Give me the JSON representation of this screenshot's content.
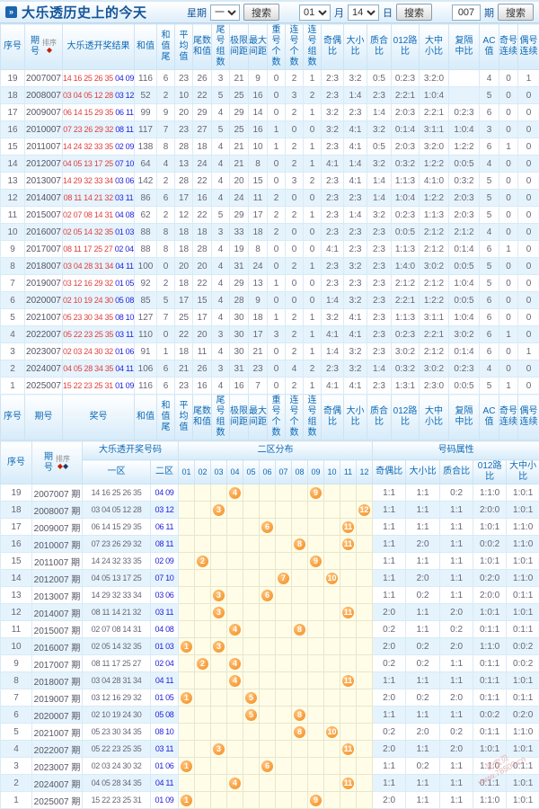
{
  "title": "大乐透历史上的今天",
  "title_icon": "»",
  "controls": {
    "week_label": "星期",
    "week_value": "一",
    "search_button": "搜索",
    "month_value": "01",
    "month_suffix": "月",
    "day_value": "14",
    "day_suffix": "日",
    "issue_value": "007",
    "issue_suffix": "期"
  },
  "table1": {
    "sort_label": "排序",
    "sort_icon": "◆",
    "headers": [
      "序号",
      "期|号",
      "大乐透开奖结果",
      "和值",
      "和值|尾",
      "平均|值",
      "尾数|和值",
      "尾号|组数",
      "极限|间距",
      "最大|间距",
      "重号|个数",
      "连号|个数",
      "连号|组数",
      "奇偶|比",
      "大小|比",
      "质合|比",
      "012路|比",
      "大中|小比",
      "复隔|中比",
      "AC值",
      "奇号|连续",
      "偶号|连续"
    ],
    "footer_headers": [
      "序号",
      "期号",
      "奖号",
      "和值",
      "和值|尾",
      "平均|值",
      "尾数|和值",
      "尾号|组数",
      "极限|间距",
      "最大|间距",
      "重号|个数",
      "连号|个数",
      "连号|组数",
      "奇偶|比",
      "大小|比",
      "质合|比",
      "012路|比",
      "大中|小比",
      "复隔|中比",
      "AC值",
      "奇号|连续",
      "偶号|连续"
    ],
    "rows": [
      {
        "seq": "19",
        "issue": "2007007",
        "front": "14 16 25 26 35",
        "back": "04 09",
        "stats": [
          "116",
          "6",
          "23",
          "26",
          "3",
          "21",
          "9",
          "0",
          "2",
          "1",
          "2:3",
          "3:2",
          "0:5",
          "0:2:3",
          "3:2:0",
          "",
          "4",
          "0",
          "1"
        ]
      },
      {
        "seq": "18",
        "issue": "2008007",
        "front": "03 04 05 12 28",
        "back": "03 12",
        "stats": [
          "52",
          "2",
          "10",
          "22",
          "5",
          "25",
          "16",
          "0",
          "3",
          "2",
          "2:3",
          "1:4",
          "2:3",
          "2:2:1",
          "1:0:4",
          "",
          "5",
          "0",
          "0"
        ]
      },
      {
        "seq": "17",
        "issue": "2009007",
        "front": "06 14 15 29 35",
        "back": "06 11",
        "stats": [
          "99",
          "9",
          "20",
          "29",
          "4",
          "29",
          "14",
          "0",
          "2",
          "1",
          "3:2",
          "2:3",
          "1:4",
          "2:0:3",
          "2:2:1",
          "0:2:3",
          "6",
          "0",
          "0"
        ]
      },
      {
        "seq": "16",
        "issue": "2010007",
        "front": "07 23 26 29 32",
        "back": "08 11",
        "stats": [
          "117",
          "7",
          "23",
          "27",
          "5",
          "25",
          "16",
          "1",
          "0",
          "0",
          "3:2",
          "4:1",
          "3:2",
          "0:1:4",
          "3:1:1",
          "1:0:4",
          "3",
          "0",
          "0"
        ]
      },
      {
        "seq": "15",
        "issue": "2011007",
        "front": "14 24 32 33 35",
        "back": "02 09",
        "stats": [
          "138",
          "8",
          "28",
          "18",
          "4",
          "21",
          "10",
          "1",
          "2",
          "1",
          "2:3",
          "4:1",
          "0:5",
          "2:0:3",
          "3:2:0",
          "1:2:2",
          "6",
          "1",
          "0"
        ]
      },
      {
        "seq": "14",
        "issue": "2012007",
        "front": "04 05 13 17 25",
        "back": "07 10",
        "stats": [
          "64",
          "4",
          "13",
          "24",
          "4",
          "21",
          "8",
          "0",
          "2",
          "1",
          "4:1",
          "1:4",
          "3:2",
          "0:3:2",
          "1:2:2",
          "0:0:5",
          "4",
          "0",
          "0"
        ]
      },
      {
        "seq": "13",
        "issue": "2013007",
        "front": "14 29 32 33 34",
        "back": "03 06",
        "stats": [
          "142",
          "2",
          "28",
          "22",
          "4",
          "20",
          "15",
          "0",
          "3",
          "2",
          "2:3",
          "4:1",
          "1:4",
          "1:1:3",
          "4:1:0",
          "0:3:2",
          "5",
          "0",
          "0"
        ]
      },
      {
        "seq": "12",
        "issue": "2014007",
        "front": "08 11 14 21 32",
        "back": "03 11",
        "stats": [
          "86",
          "6",
          "17",
          "16",
          "4",
          "24",
          "11",
          "2",
          "0",
          "0",
          "2:3",
          "2:3",
          "1:4",
          "1:0:4",
          "1:2:2",
          "2:0:3",
          "5",
          "0",
          "0"
        ]
      },
      {
        "seq": "11",
        "issue": "2015007",
        "front": "02 07 08 14 31",
        "back": "04 08",
        "stats": [
          "62",
          "2",
          "12",
          "22",
          "5",
          "29",
          "17",
          "2",
          "2",
          "1",
          "2:3",
          "1:4",
          "3:2",
          "0:2:3",
          "1:1:3",
          "2:0:3",
          "5",
          "0",
          "0"
        ]
      },
      {
        "seq": "10",
        "issue": "2016007",
        "front": "02 05 14 32 35",
        "back": "01 03",
        "stats": [
          "88",
          "8",
          "18",
          "18",
          "3",
          "33",
          "18",
          "2",
          "0",
          "0",
          "2:3",
          "2:3",
          "2:3",
          "0:0:5",
          "2:1:2",
          "2:1:2",
          "4",
          "0",
          "0"
        ]
      },
      {
        "seq": "9",
        "issue": "2017007",
        "front": "08 11 17 25 27",
        "back": "02 04",
        "stats": [
          "88",
          "8",
          "18",
          "28",
          "4",
          "19",
          "8",
          "0",
          "0",
          "0",
          "4:1",
          "2:3",
          "2:3",
          "1:1:3",
          "2:1:2",
          "0:1:4",
          "6",
          "1",
          "0"
        ]
      },
      {
        "seq": "8",
        "issue": "2018007",
        "front": "03 04 28 31 34",
        "back": "04 11",
        "stats": [
          "100",
          "0",
          "20",
          "20",
          "4",
          "31",
          "24",
          "0",
          "2",
          "1",
          "2:3",
          "3:2",
          "2:3",
          "1:4:0",
          "3:0:2",
          "0:0:5",
          "5",
          "0",
          "0"
        ]
      },
      {
        "seq": "7",
        "issue": "2019007",
        "front": "03 12 16 29 32",
        "back": "01 05",
        "stats": [
          "92",
          "2",
          "18",
          "22",
          "4",
          "29",
          "13",
          "1",
          "0",
          "0",
          "2:3",
          "2:3",
          "2:3",
          "2:1:2",
          "2:1:2",
          "1:0:4",
          "5",
          "0",
          "0"
        ]
      },
      {
        "seq": "6",
        "issue": "2020007",
        "front": "02 10 19 24 30",
        "back": "05 08",
        "stats": [
          "85",
          "5",
          "17",
          "15",
          "4",
          "28",
          "9",
          "0",
          "0",
          "0",
          "1:4",
          "3:2",
          "2:3",
          "2:2:1",
          "1:2:2",
          "0:0:5",
          "6",
          "0",
          "0"
        ]
      },
      {
        "seq": "5",
        "issue": "2021007",
        "front": "05 23 30 34 35",
        "back": "08 10",
        "stats": [
          "127",
          "7",
          "25",
          "17",
          "4",
          "30",
          "18",
          "1",
          "2",
          "1",
          "3:2",
          "4:1",
          "2:3",
          "1:1:3",
          "3:1:1",
          "1:0:4",
          "6",
          "0",
          "0"
        ]
      },
      {
        "seq": "4",
        "issue": "2022007",
        "front": "05 22 23 25 35",
        "back": "03 11",
        "stats": [
          "110",
          "0",
          "22",
          "20",
          "3",
          "30",
          "17",
          "3",
          "2",
          "1",
          "4:1",
          "4:1",
          "2:3",
          "0:2:3",
          "2:2:1",
          "3:0:2",
          "6",
          "1",
          "0"
        ]
      },
      {
        "seq": "3",
        "issue": "2023007",
        "front": "02 03 24 30 32",
        "back": "01 06",
        "stats": [
          "91",
          "1",
          "18",
          "11",
          "4",
          "30",
          "21",
          "0",
          "2",
          "1",
          "1:4",
          "3:2",
          "2:3",
          "3:0:2",
          "2:1:2",
          "0:1:4",
          "6",
          "0",
          "1"
        ]
      },
      {
        "seq": "2",
        "issue": "2024007",
        "front": "04 05 28 34 35",
        "back": "04 11",
        "stats": [
          "106",
          "6",
          "21",
          "26",
          "3",
          "31",
          "23",
          "0",
          "4",
          "2",
          "2:3",
          "3:2",
          "1:4",
          "0:3:2",
          "3:0:2",
          "0:2:3",
          "4",
          "0",
          "0"
        ]
      },
      {
        "seq": "1",
        "issue": "2025007",
        "front": "15 22 23 25 31",
        "back": "01 09",
        "stats": [
          "116",
          "6",
          "23",
          "16",
          "4",
          "16",
          "7",
          "0",
          "2",
          "1",
          "4:1",
          "4:1",
          "2:3",
          "1:3:1",
          "2:3:0",
          "0:0:5",
          "5",
          "1",
          "0"
        ]
      }
    ]
  },
  "table2": {
    "labels": {
      "seq": "序号",
      "issue_l1": "期",
      "issue_l2": "号",
      "sort": "排序",
      "sort_icon1": "◆",
      "sort_icon2": "◆",
      "numbers": "大乐透开奖号码",
      "zone1": "一区",
      "zone2": "二区",
      "dist": "二区分布",
      "attrs": "号码属性"
    },
    "dist_cols": [
      "01",
      "02",
      "03",
      "04",
      "05",
      "06",
      "07",
      "08",
      "09",
      "10",
      "11",
      "12"
    ],
    "attr_cols": [
      "奇偶比",
      "大小比",
      "质合比",
      "012路比",
      "大中小比"
    ],
    "rows": [
      {
        "seq": "19",
        "issue": "2007007 期",
        "zone1": "14 16 25 26 35",
        "zone2": "04 09",
        "balls": [
          4,
          9
        ],
        "attrs": [
          "1:1",
          "1:1",
          "0:2",
          "1:1:0",
          "1:0:1"
        ]
      },
      {
        "seq": "18",
        "issue": "2008007 期",
        "zone1": "03 04 05 12 28",
        "zone2": "03 12",
        "balls": [
          3,
          12
        ],
        "attrs": [
          "1:1",
          "1:1",
          "1:1",
          "2:0:0",
          "1:0:1"
        ]
      },
      {
        "seq": "17",
        "issue": "2009007 期",
        "zone1": "06 14 15 29 35",
        "zone2": "06 11",
        "balls": [
          6,
          11
        ],
        "attrs": [
          "1:1",
          "1:1",
          "1:1",
          "1:0:1",
          "1:1:0"
        ]
      },
      {
        "seq": "16",
        "issue": "2010007 期",
        "zone1": "07 23 26 29 32",
        "zone2": "08 11",
        "balls": [
          8,
          11
        ],
        "attrs": [
          "1:1",
          "2:0",
          "1:1",
          "0:0:2",
          "1:1:0"
        ]
      },
      {
        "seq": "15",
        "issue": "2011007 期",
        "zone1": "14 24 32 33 35",
        "zone2": "02 09",
        "balls": [
          2,
          9
        ],
        "attrs": [
          "1:1",
          "1:1",
          "1:1",
          "1:0:1",
          "1:0:1"
        ]
      },
      {
        "seq": "14",
        "issue": "2012007 期",
        "zone1": "04 05 13 17 25",
        "zone2": "07 10",
        "balls": [
          7,
          10
        ],
        "attrs": [
          "1:1",
          "2:0",
          "1:1",
          "0:2:0",
          "1:1:0"
        ]
      },
      {
        "seq": "13",
        "issue": "2013007 期",
        "zone1": "14 29 32 33 34",
        "zone2": "03 06",
        "balls": [
          3,
          6
        ],
        "attrs": [
          "1:1",
          "0:2",
          "1:1",
          "2:0:0",
          "0:1:1"
        ]
      },
      {
        "seq": "12",
        "issue": "2014007 期",
        "zone1": "08 11 14 21 32",
        "zone2": "03 11",
        "balls": [
          3,
          11
        ],
        "attrs": [
          "2:0",
          "1:1",
          "2:0",
          "1:0:1",
          "1:0:1"
        ]
      },
      {
        "seq": "11",
        "issue": "2015007 期",
        "zone1": "02 07 08 14 31",
        "zone2": "04 08",
        "balls": [
          4,
          8
        ],
        "attrs": [
          "0:2",
          "1:1",
          "0:2",
          "0:1:1",
          "0:1:1"
        ]
      },
      {
        "seq": "10",
        "issue": "2016007 期",
        "zone1": "02 05 14 32 35",
        "zone2": "01 03",
        "balls": [
          1,
          3
        ],
        "attrs": [
          "2:0",
          "0:2",
          "2:0",
          "1:1:0",
          "0:0:2"
        ]
      },
      {
        "seq": "9",
        "issue": "2017007 期",
        "zone1": "08 11 17 25 27",
        "zone2": "02 04",
        "balls": [
          2,
          4
        ],
        "attrs": [
          "0:2",
          "0:2",
          "1:1",
          "0:1:1",
          "0:0:2"
        ]
      },
      {
        "seq": "8",
        "issue": "2018007 期",
        "zone1": "03 04 28 31 34",
        "zone2": "04 11",
        "balls": [
          4,
          11
        ],
        "attrs": [
          "1:1",
          "1:1",
          "1:1",
          "0:1:1",
          "1:0:1"
        ]
      },
      {
        "seq": "7",
        "issue": "2019007 期",
        "zone1": "03 12 16 29 32",
        "zone2": "01 05",
        "balls": [
          1,
          5
        ],
        "attrs": [
          "2:0",
          "0:2",
          "2:0",
          "0:1:1",
          "0:1:1"
        ]
      },
      {
        "seq": "6",
        "issue": "2020007 期",
        "zone1": "02 10 19 24 30",
        "zone2": "05 08",
        "balls": [
          5,
          8
        ],
        "attrs": [
          "1:1",
          "1:1",
          "1:1",
          "0:0:2",
          "0:2:0"
        ]
      },
      {
        "seq": "5",
        "issue": "2021007 期",
        "zone1": "05 23 30 34 35",
        "zone2": "08 10",
        "balls": [
          8,
          10
        ],
        "attrs": [
          "0:2",
          "2:0",
          "0:2",
          "0:1:1",
          "1:1:0"
        ]
      },
      {
        "seq": "4",
        "issue": "2022007 期",
        "zone1": "05 22 23 25 35",
        "zone2": "03 11",
        "balls": [
          3,
          11
        ],
        "attrs": [
          "2:0",
          "1:1",
          "2:0",
          "1:0:1",
          "1:0:1"
        ]
      },
      {
        "seq": "3",
        "issue": "2023007 期",
        "zone1": "02 03 24 30 32",
        "zone2": "01 06",
        "balls": [
          1,
          6
        ],
        "attrs": [
          "1:1",
          "0:2",
          "1:1",
          "1:1:0",
          "0:1:1"
        ]
      },
      {
        "seq": "2",
        "issue": "2024007 期",
        "zone1": "04 05 28 34 35",
        "zone2": "04 11",
        "balls": [
          4,
          11
        ],
        "attrs": [
          "1:1",
          "1:1",
          "1:1",
          "0:1:1",
          "1:0:1"
        ]
      },
      {
        "seq": "1",
        "issue": "2025007 期",
        "zone1": "15 22 23 25 31",
        "zone2": "01 09",
        "balls": [
          1,
          9
        ],
        "attrs": [
          "2:0",
          "1:1",
          "1:1",
          "1:1:0",
          "1:0:1"
        ]
      }
    ]
  },
  "watermark": {
    "line1": "彩宝贝",
    "line2": "www.78500.cn"
  }
}
